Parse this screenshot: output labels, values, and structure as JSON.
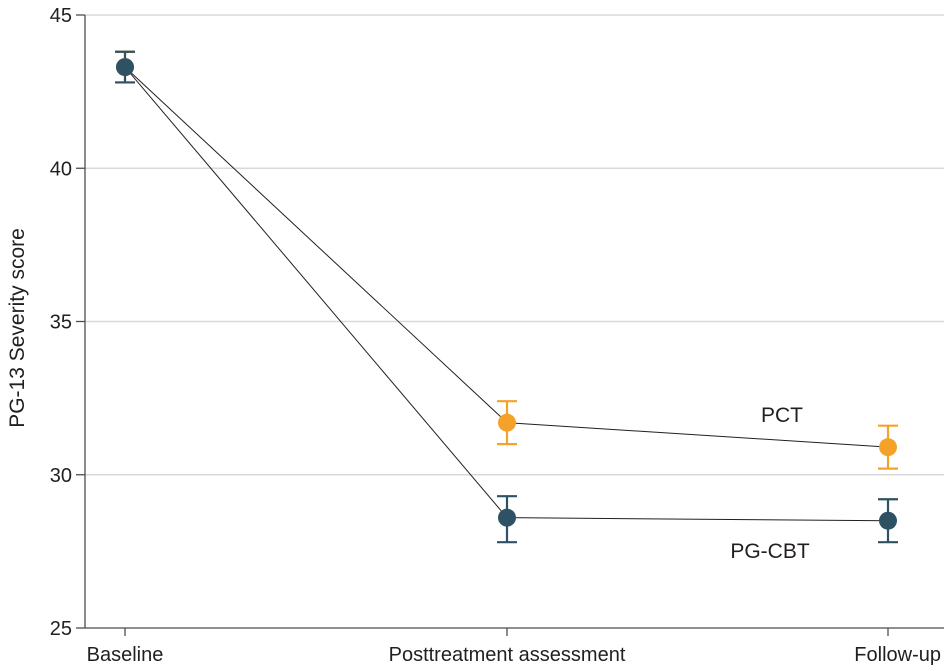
{
  "chart_data": {
    "type": "line",
    "title": "",
    "xlabel": "",
    "ylabel": "PG-13 Severity score",
    "ylim": [
      25,
      45
    ],
    "yticks": [
      25,
      30,
      35,
      40,
      45
    ],
    "categories": [
      "Baseline",
      "Posttreatment assessment",
      "Follow-up"
    ],
    "grid": true,
    "series": [
      {
        "name": "PCT",
        "color": "#f5a22a",
        "values": [
          43.3,
          31.7,
          30.9
        ],
        "error_low": [
          42.8,
          31.0,
          30.2
        ],
        "error_high": [
          43.8,
          32.4,
          31.6
        ]
      },
      {
        "name": "PG-CBT",
        "color": "#2e5263",
        "values": [
          43.3,
          28.6,
          28.5
        ],
        "error_low": [
          42.8,
          27.8,
          27.8
        ],
        "error_high": [
          43.8,
          29.3,
          29.2
        ]
      }
    ]
  }
}
